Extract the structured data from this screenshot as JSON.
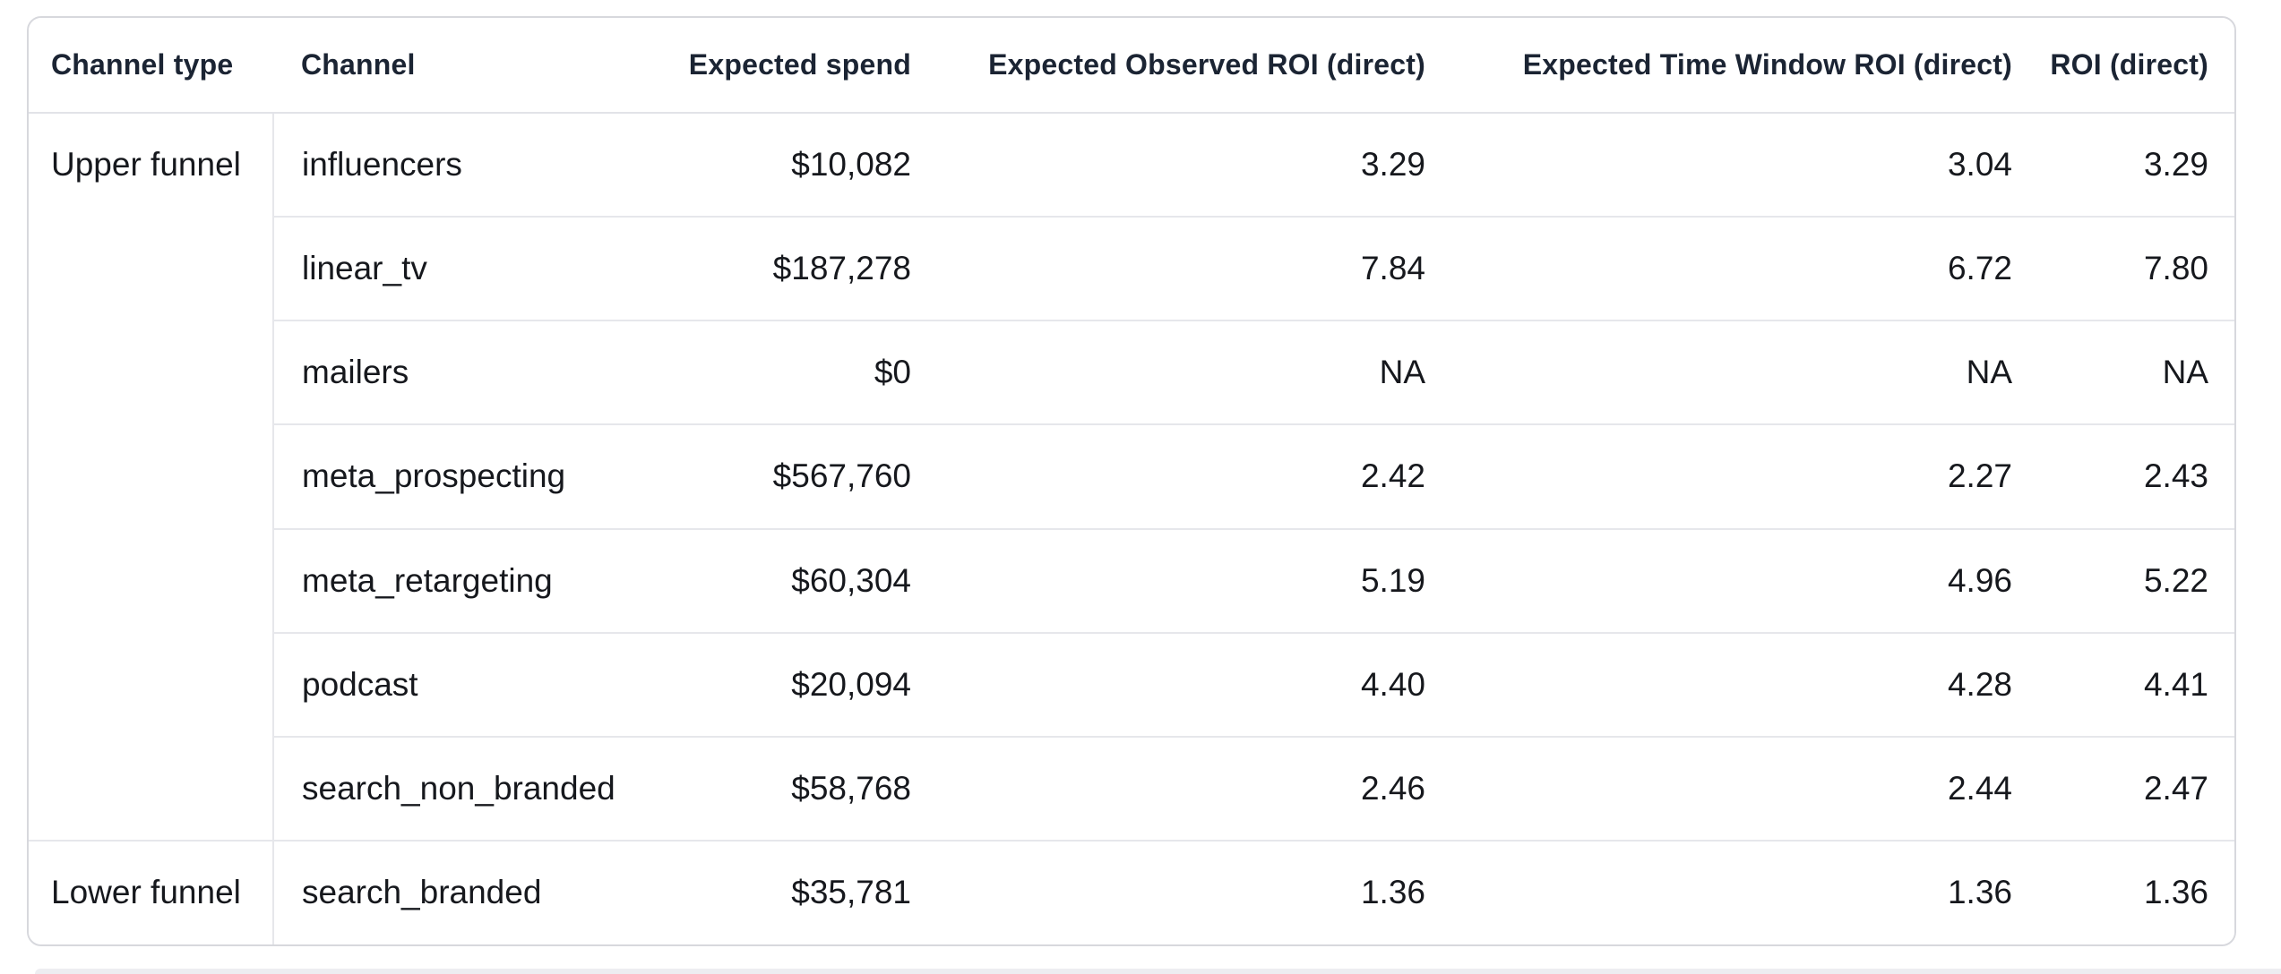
{
  "table": {
    "columns": [
      {
        "label": "Channel type",
        "align": "left"
      },
      {
        "label": "Channel",
        "align": "left"
      },
      {
        "label": "Expected spend",
        "align": "right"
      },
      {
        "label": "Expected Observed ROI (direct)",
        "align": "right"
      },
      {
        "label": "Expected Time Window ROI (direct)",
        "align": "right"
      },
      {
        "label": "ROI (direct)",
        "align": "right"
      }
    ],
    "groups": [
      {
        "channel_type": "Upper funnel",
        "rows": [
          {
            "channel": "influencers",
            "expected_spend": "$10,082",
            "expected_observed_roi": "3.29",
            "expected_time_window_roi": "3.04",
            "roi": "3.29"
          },
          {
            "channel": "linear_tv",
            "expected_spend": "$187,278",
            "expected_observed_roi": "7.84",
            "expected_time_window_roi": "6.72",
            "roi": "7.80"
          },
          {
            "channel": "mailers",
            "expected_spend": "$0",
            "expected_observed_roi": "NA",
            "expected_time_window_roi": "NA",
            "roi": "NA"
          },
          {
            "channel": "meta_prospecting",
            "expected_spend": "$567,760",
            "expected_observed_roi": "2.42",
            "expected_time_window_roi": "2.27",
            "roi": "2.43"
          },
          {
            "channel": "meta_retargeting",
            "expected_spend": "$60,304",
            "expected_observed_roi": "5.19",
            "expected_time_window_roi": "4.96",
            "roi": "5.22"
          },
          {
            "channel": "podcast",
            "expected_spend": "$20,094",
            "expected_observed_roi": "4.40",
            "expected_time_window_roi": "4.28",
            "roi": "4.41"
          },
          {
            "channel": "search_non_branded",
            "expected_spend": "$58,768",
            "expected_observed_roi": "2.46",
            "expected_time_window_roi": "2.44",
            "roi": "2.47"
          }
        ]
      },
      {
        "channel_type": "Lower funnel",
        "rows": [
          {
            "channel": "search_branded",
            "expected_spend": "$35,781",
            "expected_observed_roi": "1.36",
            "expected_time_window_roi": "1.36",
            "roi": "1.36"
          }
        ]
      }
    ]
  },
  "colors": {
    "header_text": "#1b2433",
    "body_text": "#16181d",
    "card_border": "#d7d8dd",
    "row_divider": "#e6e7eb",
    "header_divider": "#e2e3e8",
    "background": "#ffffff",
    "bottom_strip": "#ededf1"
  }
}
